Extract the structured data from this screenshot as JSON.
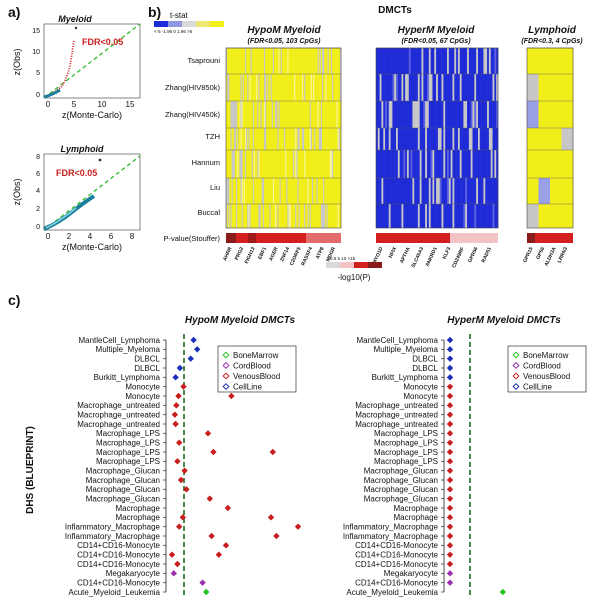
{
  "panel_labels": {
    "a": "a)",
    "b": "b)",
    "c": "c)"
  },
  "colors": {
    "yellow": "#f2ee1a",
    "blue": "#1f2bd6",
    "grey": "#c7c7c7",
    "red": "#d41f1f",
    "pink": "#f4c3c6",
    "green": "#2a8f2a",
    "darkred": "#8b1a1a"
  },
  "panel_a": {
    "myeloid": {
      "title": "Myeloid",
      "fdr_label": "FDR<0.05",
      "xlabel": "z(Monte-Carlo)",
      "ylabel": "z(Obs)",
      "xticks": [
        "0",
        "5",
        "10",
        "15"
      ],
      "yticks": [
        "0",
        "5",
        "10",
        "15"
      ]
    },
    "lymphoid": {
      "title": "Lymphoid",
      "fdr_label": "FDR<0.05",
      "xlabel": "z(Monte-Carlo)",
      "ylabel": "z(Obs)",
      "xticks": [
        "0",
        "2",
        "4",
        "6",
        "8"
      ],
      "yticks": [
        "0",
        "2",
        "4",
        "6",
        "8"
      ]
    }
  },
  "panel_b": {
    "title": "DMCTs",
    "tstat_label": "t-stat",
    "tstat_ticks": "<-5 -1.96 0 1.96 >5",
    "heatmaps": [
      {
        "title": "HypoM Myeloid",
        "subtitle": "(FDR<0.05, 103 CpGs)"
      },
      {
        "title": "HyperM Myeloid",
        "subtitle": "(FDR<0.05, 67 CpGs)"
      },
      {
        "title": "Lymphoid",
        "subtitle": "(FDR<0.3, 4 CpGs)"
      }
    ],
    "rows": [
      "Tsaprouni",
      "Zhang(HIV850k)",
      "Zhang(HIV450k)",
      "TZH",
      "Hannum",
      "Liu",
      "Buccal"
    ],
    "pvalue_label": "P-value(Stouffer)",
    "pvalue_ticks": "0.5  5   10  >15",
    "pvalue_axis": "-log10(P)",
    "genes_hypo": [
      "AHRR",
      "PRG2",
      "FIGN13",
      "EBF1",
      "AGER",
      "ZNF14",
      "C2ORF5",
      "RASSF4",
      "ATP8",
      "MDGR"
    ],
    "genes_hyper": [
      "MYO1D",
      "NFIX",
      "APTHA",
      "SLC45A3",
      "ANKRD1",
      "KLF3",
      "CD249RF",
      "GPR56",
      "RAD51"
    ],
    "genes_lymph": [
      "GPR15",
      "GP56",
      "ALDH3A",
      "LRRN3"
    ]
  },
  "chart_data": [
    {
      "type": "scatter",
      "title": "HypoM Myeloid DMCTs",
      "ylabel": "DHS (BLUEPRINT)",
      "categories": [
        "MantleCell_Lymphoma",
        "Multiple_Myeloma",
        "DLBCL",
        "DLBCL",
        "Burkitt_Lymphoma",
        "Monocyte",
        "Monocyte",
        "Macrophage_untreated",
        "Macrophage_untreated",
        "Macrophage_untreated",
        "Macrophage_LPS",
        "Macrophage_LPS",
        "Macrophage_LPS",
        "Macrophage_LPS",
        "Macrophage_Glucan",
        "Macrophage_Glucan",
        "Macrophage_Glucan",
        "Macrophage_Glucan",
        "Macrophage",
        "Macrophage",
        "Inflammatory_Macrophage",
        "Inflammatory_Macrophage",
        "CD14+CD16-Monocyte",
        "CD14+CD16-Monocyte",
        "CD14+CD16-Monocyte",
        "Megakaryocyte",
        "CD14+CD16-Monocyte",
        "Acute_Myeloid_Leukemia"
      ],
      "legend": [
        {
          "name": "BoneMarrow",
          "color": "#22c322"
        },
        {
          "name": "CordBlood",
          "color": "#9a2fb0"
        },
        {
          "name": "VenousBlood",
          "color": "#c81e1e"
        },
        {
          "name": "CellLine",
          "color": "#1c2fb8"
        }
      ],
      "points": [
        {
          "row": 0,
          "x": 0.6,
          "group": "CellLine"
        },
        {
          "row": 1,
          "x": 0.7,
          "group": "CellLine"
        },
        {
          "row": 2,
          "x": 0.52,
          "group": "CellLine"
        },
        {
          "row": 3,
          "x": 0.22,
          "group": "CellLine"
        },
        {
          "row": 4,
          "x": 0.1,
          "group": "CellLine"
        },
        {
          "row": 5,
          "x": 0.32,
          "group": "VenousBlood"
        },
        {
          "row": 5,
          "x": 1.55,
          "group": "VenousBlood"
        },
        {
          "row": 6,
          "x": 0.18,
          "group": "VenousBlood"
        },
        {
          "row": 6,
          "x": 1.65,
          "group": "VenousBlood"
        },
        {
          "row": 7,
          "x": 0.12,
          "group": "VenousBlood"
        },
        {
          "row": 8,
          "x": 0.08,
          "group": "VenousBlood"
        },
        {
          "row": 9,
          "x": 0.1,
          "group": "VenousBlood"
        },
        {
          "row": 10,
          "x": 1.0,
          "group": "VenousBlood"
        },
        {
          "row": 11,
          "x": 0.2,
          "group": "VenousBlood"
        },
        {
          "row": 12,
          "x": 1.15,
          "group": "VenousBlood"
        },
        {
          "row": 12,
          "x": 2.8,
          "group": "VenousBlood"
        },
        {
          "row": 13,
          "x": 0.15,
          "group": "VenousBlood"
        },
        {
          "row": 14,
          "x": 0.35,
          "group": "VenousBlood"
        },
        {
          "row": 15,
          "x": 0.25,
          "group": "VenousBlood"
        },
        {
          "row": 16,
          "x": 0.4,
          "group": "VenousBlood"
        },
        {
          "row": 17,
          "x": 1.05,
          "group": "VenousBlood"
        },
        {
          "row": 18,
          "x": 1.55,
          "group": "VenousBlood"
        },
        {
          "row": 19,
          "x": 0.3,
          "group": "VenousBlood"
        },
        {
          "row": 19,
          "x": 2.75,
          "group": "VenousBlood"
        },
        {
          "row": 20,
          "x": 0.2,
          "group": "VenousBlood"
        },
        {
          "row": 20,
          "x": 3.5,
          "group": "VenousBlood"
        },
        {
          "row": 21,
          "x": 1.1,
          "group": "VenousBlood"
        },
        {
          "row": 21,
          "x": 2.9,
          "group": "VenousBlood"
        },
        {
          "row": 22,
          "x": 1.5,
          "group": "VenousBlood"
        },
        {
          "row": 23,
          "x": 0.0,
          "group": "VenousBlood"
        },
        {
          "row": 23,
          "x": 1.3,
          "group": "VenousBlood"
        },
        {
          "row": 24,
          "x": 0.15,
          "group": "VenousBlood"
        },
        {
          "row": 25,
          "x": 0.05,
          "group": "CordBlood"
        },
        {
          "row": 26,
          "x": 0.85,
          "group": "CordBlood"
        },
        {
          "row": 27,
          "x": 0.95,
          "group": "BoneMarrow"
        }
      ]
    },
    {
      "type": "scatter",
      "title": "HyperM Myeloid DMCTs",
      "categories": [
        "MantleCell_Lymphoma",
        "Multiple_Myeloma",
        "DLBCL",
        "DLBCL",
        "Burkitt_Lymphoma",
        "Monocyte",
        "Monocyte",
        "Macrophage_untreated",
        "Macrophage_untreated",
        "Macrophage_untreated",
        "Macrophage_LPS",
        "Macrophage_LPS",
        "Macrophage_LPS",
        "Macrophage_LPS",
        "Macrophage_Glucan",
        "Macrophage_Glucan",
        "Macrophage_Glucan",
        "Macrophage_Glucan",
        "Macrophage",
        "Macrophage",
        "Inflammatory_Macrophage",
        "Inflammatory_Macrophage",
        "CD14+CD16-Monocyte",
        "CD14+CD16-Monocyte",
        "CD14+CD16-Monocyte",
        "Megakaryocyte",
        "CD14+CD16-Monocyte",
        "Acute_Myeloid_Leukemia"
      ],
      "legend": [
        {
          "name": "BoneMarrow",
          "color": "#22c322"
        },
        {
          "name": "CordBlood",
          "color": "#9a2fb0"
        },
        {
          "name": "VenousBlood",
          "color": "#c81e1e"
        },
        {
          "name": "CellLine",
          "color": "#1c2fb8"
        }
      ],
      "points": [
        {
          "row": 0,
          "x": 0.0,
          "group": "CellLine"
        },
        {
          "row": 1,
          "x": 0.0,
          "group": "CellLine"
        },
        {
          "row": 2,
          "x": 0.0,
          "group": "CellLine"
        },
        {
          "row": 3,
          "x": 0.0,
          "group": "CellLine"
        },
        {
          "row": 4,
          "x": 0.0,
          "group": "CellLine"
        },
        {
          "row": 5,
          "x": 0.0,
          "group": "VenousBlood"
        },
        {
          "row": 6,
          "x": 0.0,
          "group": "VenousBlood"
        },
        {
          "row": 7,
          "x": 0.0,
          "group": "VenousBlood"
        },
        {
          "row": 8,
          "x": 0.0,
          "group": "VenousBlood"
        },
        {
          "row": 9,
          "x": 0.0,
          "group": "VenousBlood"
        },
        {
          "row": 10,
          "x": 0.0,
          "group": "VenousBlood"
        },
        {
          "row": 11,
          "x": 0.0,
          "group": "VenousBlood"
        },
        {
          "row": 12,
          "x": 0.0,
          "group": "VenousBlood"
        },
        {
          "row": 13,
          "x": 0.0,
          "group": "VenousBlood"
        },
        {
          "row": 14,
          "x": 0.0,
          "group": "VenousBlood"
        },
        {
          "row": 15,
          "x": 0.0,
          "group": "VenousBlood"
        },
        {
          "row": 16,
          "x": 0.0,
          "group": "VenousBlood"
        },
        {
          "row": 17,
          "x": 0.0,
          "group": "VenousBlood"
        },
        {
          "row": 18,
          "x": 0.0,
          "group": "VenousBlood"
        },
        {
          "row": 19,
          "x": 0.0,
          "group": "VenousBlood"
        },
        {
          "row": 20,
          "x": 0.0,
          "group": "VenousBlood"
        },
        {
          "row": 21,
          "x": 0.0,
          "group": "VenousBlood"
        },
        {
          "row": 22,
          "x": 0.0,
          "group": "VenousBlood"
        },
        {
          "row": 23,
          "x": 0.0,
          "group": "VenousBlood"
        },
        {
          "row": 24,
          "x": 0.0,
          "group": "VenousBlood"
        },
        {
          "row": 25,
          "x": 0.0,
          "group": "CordBlood"
        },
        {
          "row": 26,
          "x": 0.0,
          "group": "CordBlood"
        },
        {
          "row": 27,
          "x": 3.3,
          "group": "BoneMarrow"
        }
      ]
    }
  ]
}
